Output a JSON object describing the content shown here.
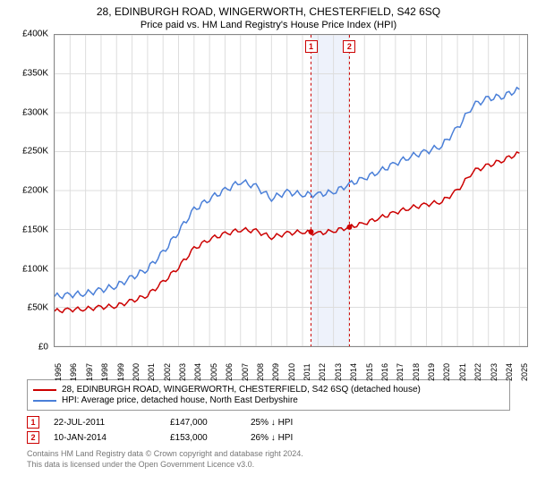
{
  "title": "28, EDINBURGH ROAD, WINGERWORTH, CHESTERFIELD, S42 6SQ",
  "subtitle": "Price paid vs. HM Land Registry's House Price Index (HPI)",
  "chart": {
    "type": "line",
    "background_color": "#ffffff",
    "grid_color": "#dddddd",
    "axis_color": "#888888",
    "xlim": [
      1995,
      2025.5
    ],
    "ylim": [
      0,
      400000
    ],
    "ytick_step": 50000,
    "yticks": [
      "£0",
      "£50K",
      "£100K",
      "£150K",
      "£200K",
      "£250K",
      "£300K",
      "£350K",
      "£400K"
    ],
    "xticks": [
      "1995",
      "1996",
      "1997",
      "1998",
      "1999",
      "2000",
      "2001",
      "2002",
      "2003",
      "2004",
      "2005",
      "2006",
      "2007",
      "2008",
      "2009",
      "2010",
      "2011",
      "2012",
      "2013",
      "2014",
      "2015",
      "2016",
      "2017",
      "2018",
      "2019",
      "2020",
      "2021",
      "2022",
      "2023",
      "2024",
      "2025"
    ],
    "highlight_band": {
      "x_start": 2011.55,
      "x_end": 2014.03,
      "fill": "#eef2fb"
    },
    "series": [
      {
        "id": "property",
        "label": "28, EDINBURGH ROAD, WINGERWORTH, CHESTERFIELD, S42 6SQ (detached house)",
        "color": "#cc0000",
        "line_width": 1.5,
        "points": [
          [
            1995,
            45000
          ],
          [
            1996,
            47000
          ],
          [
            1997,
            48000
          ],
          [
            1998,
            50000
          ],
          [
            1999,
            52000
          ],
          [
            2000,
            58000
          ],
          [
            2001,
            66000
          ],
          [
            2002,
            82000
          ],
          [
            2003,
            102000
          ],
          [
            2004,
            125000
          ],
          [
            2005,
            138000
          ],
          [
            2006,
            144000
          ],
          [
            2007,
            150000
          ],
          [
            2008,
            148000
          ],
          [
            2009,
            140000
          ],
          [
            2010,
            145000
          ],
          [
            2011,
            147000
          ],
          [
            2012,
            145000
          ],
          [
            2013,
            148000
          ],
          [
            2014,
            153000
          ],
          [
            2015,
            158000
          ],
          [
            2016,
            165000
          ],
          [
            2017,
            172000
          ],
          [
            2018,
            178000
          ],
          [
            2019,
            182000
          ],
          [
            2020,
            186000
          ],
          [
            2021,
            200000
          ],
          [
            2022,
            225000
          ],
          [
            2023,
            232000
          ],
          [
            2024,
            240000
          ],
          [
            2025,
            248000
          ]
        ]
      },
      {
        "id": "hpi",
        "label": "HPI: Average price, detached house, North East Derbyshire",
        "color": "#4a7fd8",
        "line_width": 1.5,
        "points": [
          [
            1995,
            64000
          ],
          [
            1996,
            66000
          ],
          [
            1997,
            68000
          ],
          [
            1998,
            72000
          ],
          [
            1999,
            78000
          ],
          [
            2000,
            88000
          ],
          [
            2001,
            100000
          ],
          [
            2002,
            120000
          ],
          [
            2003,
            148000
          ],
          [
            2004,
            175000
          ],
          [
            2005,
            190000
          ],
          [
            2006,
            200000
          ],
          [
            2007,
            212000
          ],
          [
            2008,
            205000
          ],
          [
            2009,
            190000
          ],
          [
            2010,
            198000
          ],
          [
            2011,
            195000
          ],
          [
            2012,
            195000
          ],
          [
            2013,
            198000
          ],
          [
            2014,
            208000
          ],
          [
            2015,
            216000
          ],
          [
            2016,
            225000
          ],
          [
            2017,
            235000
          ],
          [
            2018,
            244000
          ],
          [
            2019,
            250000
          ],
          [
            2020,
            258000
          ],
          [
            2021,
            280000
          ],
          [
            2022,
            310000
          ],
          [
            2023,
            318000
          ],
          [
            2024,
            322000
          ],
          [
            2025,
            330000
          ]
        ]
      }
    ],
    "sale_markers": [
      {
        "n": "1",
        "x": 2011.55,
        "price_y": 147000
      },
      {
        "n": "2",
        "x": 2014.03,
        "price_y": 153000
      }
    ],
    "marker_dash_color": "#cc0000",
    "marker_dot_color": "#cc0000",
    "marker_dot_radius": 3
  },
  "legend": {
    "rows": [
      {
        "color": "#cc0000",
        "label": "28, EDINBURGH ROAD, WINGERWORTH, CHESTERFIELD, S42 6SQ (detached house)"
      },
      {
        "color": "#4a7fd8",
        "label": "HPI: Average price, detached house, North East Derbyshire"
      }
    ]
  },
  "sales": [
    {
      "n": "1",
      "date": "22-JUL-2011",
      "price": "£147,000",
      "note": "25% ↓ HPI"
    },
    {
      "n": "2",
      "date": "10-JAN-2014",
      "price": "£153,000",
      "note": "26% ↓ HPI"
    }
  ],
  "footer": {
    "line1": "Contains HM Land Registry data © Crown copyright and database right 2024.",
    "line2": "This data is licensed under the Open Government Licence v3.0."
  }
}
